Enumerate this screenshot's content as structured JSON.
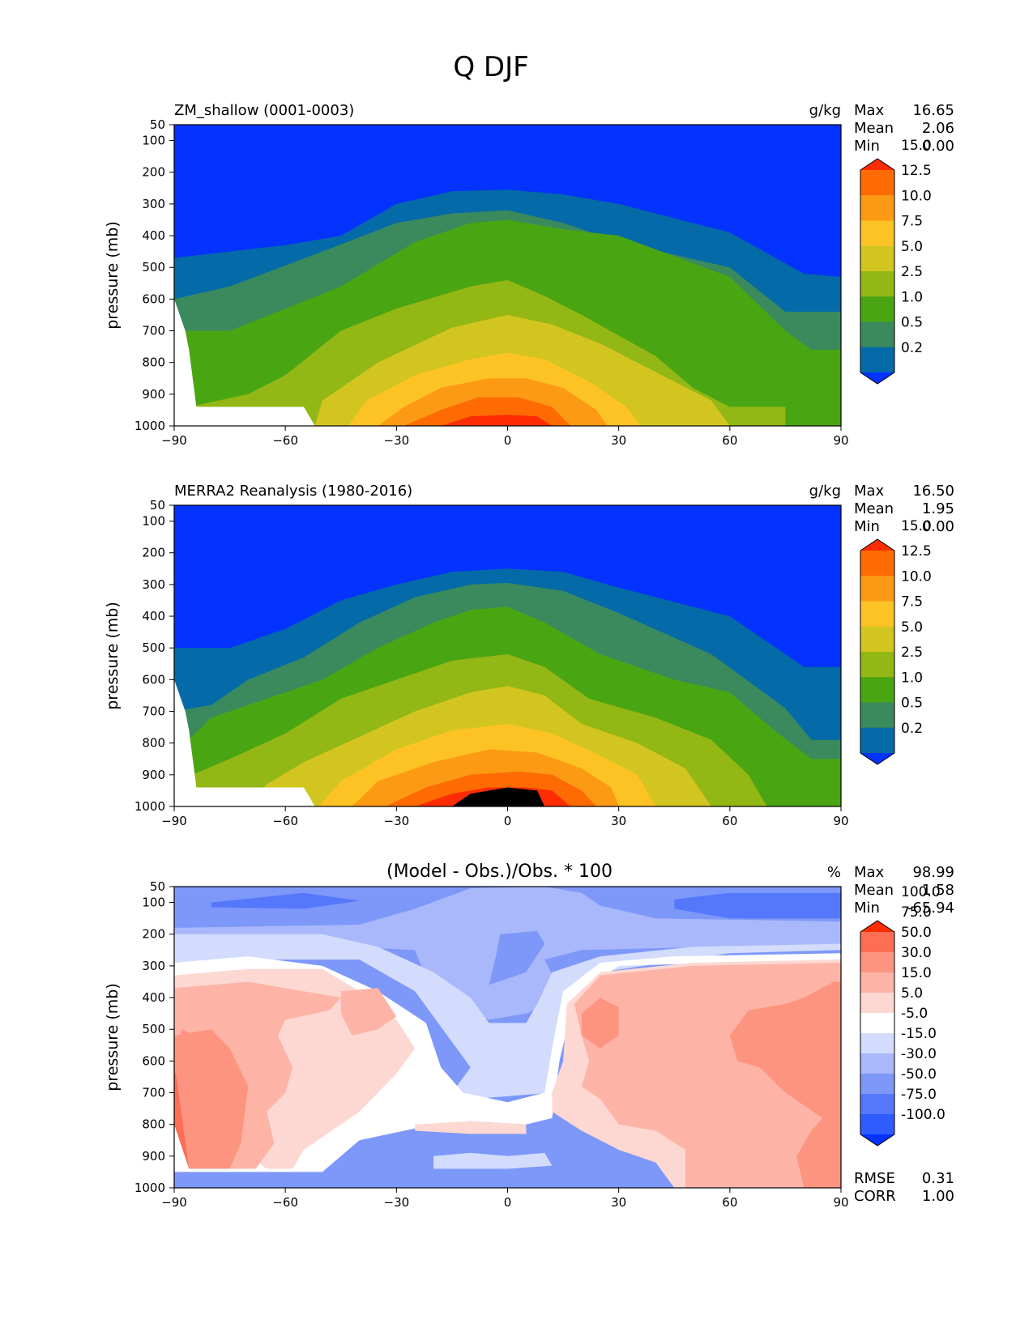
{
  "chart_data": {
    "title": "Q DJF",
    "type": "heatmap",
    "x_ticks": [
      -90,
      -60,
      -30,
      0,
      30,
      60,
      90
    ],
    "y_ticks": [
      50,
      100,
      200,
      300,
      400,
      500,
      600,
      700,
      800,
      900,
      1000
    ],
    "ylabel": "pressure (mb)",
    "xlim": [
      -90,
      90
    ],
    "ylim": [
      1000,
      50
    ],
    "panels": [
      {
        "name": "model",
        "left_title": "ZM_shallow (0001-0003)",
        "center_title": "",
        "units": "g/kg",
        "stats": [
          {
            "label": "Max",
            "value": "16.65"
          },
          {
            "label": "Mean",
            "value": "2.06"
          },
          {
            "label": "Min",
            "value": "0.00"
          }
        ],
        "colorbar": {
          "colors": [
            "#0432ff",
            "#046aa8",
            "#3a8a5e",
            "#4aa512",
            "#93b714",
            "#d3c520",
            "#fdc325",
            "#fd9a14",
            "#fd6b02",
            "#fd2c03"
          ],
          "labels": [
            "0.2",
            "0.5",
            "1.0",
            "2.5",
            "5.0",
            "7.5",
            "10.0",
            "12.5",
            "15.0"
          ]
        },
        "contours": [
          {
            "level": 0,
            "points": [
              [
                -90,
                470
              ],
              [
                -60,
                430
              ],
              [
                -45,
                400
              ],
              [
                -30,
                300
              ],
              [
                -15,
                260
              ],
              [
                0,
                255
              ],
              [
                15,
                270
              ],
              [
                30,
                300
              ],
              [
                60,
                390
              ],
              [
                80,
                520
              ],
              [
                90,
                530
              ]
            ]
          },
          {
            "level": 1,
            "points": [
              [
                -90,
                600
              ],
              [
                -75,
                560
              ],
              [
                -50,
                450
              ],
              [
                -30,
                360
              ],
              [
                -15,
                330
              ],
              [
                0,
                320
              ],
              [
                15,
                360
              ],
              [
                30,
                420
              ],
              [
                60,
                500
              ],
              [
                75,
                640
              ],
              [
                90,
                640
              ]
            ]
          },
          {
            "level": 2,
            "points": [
              [
                -90,
                700
              ],
              [
                -75,
                700
              ],
              [
                -60,
                630
              ],
              [
                -45,
                560
              ],
              [
                -25,
                420
              ],
              [
                -10,
                360
              ],
              [
                0,
                350
              ],
              [
                15,
                380
              ],
              [
                30,
                400
              ],
              [
                60,
                530
              ],
              [
                75,
                700
              ],
              [
                82,
                760
              ],
              [
                90,
                760
              ]
            ]
          },
          {
            "level": 3,
            "points": [
              [
                -86,
                940
              ],
              [
                -70,
                900
              ],
              [
                -60,
                840
              ],
              [
                -45,
                700
              ],
              [
                -30,
                630
              ],
              [
                -10,
                560
              ],
              [
                0,
                540
              ],
              [
                10,
                590
              ],
              [
                20,
                650
              ],
              [
                40,
                780
              ],
              [
                50,
                880
              ],
              [
                60,
                940
              ],
              [
                70,
                940
              ],
              [
                75,
                940
              ]
            ]
          },
          {
            "level": 4,
            "points": [
              [
                -52,
                1000
              ],
              [
                -50,
                920
              ],
              [
                -35,
                800
              ],
              [
                -15,
                690
              ],
              [
                0,
                650
              ],
              [
                12,
                680
              ],
              [
                25,
                740
              ],
              [
                35,
                800
              ],
              [
                45,
                860
              ],
              [
                55,
                920
              ],
              [
                60,
                1000
              ]
            ]
          },
          {
            "level": 5,
            "points": [
              [
                -43,
                1000
              ],
              [
                -38,
                920
              ],
              [
                -25,
                840
              ],
              [
                -10,
                790
              ],
              [
                0,
                770
              ],
              [
                10,
                790
              ],
              [
                22,
                860
              ],
              [
                32,
                940
              ],
              [
                36,
                1000
              ]
            ]
          },
          {
            "level": 6,
            "points": [
              [
                -35,
                1000
              ],
              [
                -28,
                940
              ],
              [
                -18,
                880
              ],
              [
                -5,
                850
              ],
              [
                5,
                850
              ],
              [
                15,
                880
              ],
              [
                24,
                950
              ],
              [
                27,
                1000
              ]
            ]
          },
          {
            "level": 7,
            "points": [
              [
                -28,
                1000
              ],
              [
                -18,
                950
              ],
              [
                -8,
                910
              ],
              [
                3,
                910
              ],
              [
                12,
                940
              ],
              [
                17,
                1000
              ]
            ]
          },
          {
            "level": 8,
            "points": [
              [
                -18,
                1000
              ],
              [
                -10,
                970
              ],
              [
                0,
                965
              ],
              [
                8,
                970
              ],
              [
                12,
                1000
              ]
            ]
          }
        ]
      },
      {
        "name": "obs",
        "left_title": "MERRA2 Reanalysis (1980-2016)",
        "center_title": "",
        "units": "g/kg",
        "stats": [
          {
            "label": "Max",
            "value": "16.50"
          },
          {
            "label": "Mean",
            "value": "1.95"
          },
          {
            "label": "Min",
            "value": "0.00"
          }
        ],
        "colorbar": {
          "colors": [
            "#0432ff",
            "#046aa8",
            "#3a8a5e",
            "#4aa512",
            "#93b714",
            "#d3c520",
            "#fdc325",
            "#fd9a14",
            "#fd6b02",
            "#fd2c03"
          ],
          "labels": [
            "0.2",
            "0.5",
            "1.0",
            "2.5",
            "5.0",
            "7.5",
            "10.0",
            "12.5",
            "15.0"
          ]
        },
        "contours": [
          {
            "level": 0,
            "points": [
              [
                -90,
                500
              ],
              [
                -75,
                500
              ],
              [
                -60,
                440
              ],
              [
                -45,
                350
              ],
              [
                -30,
                300
              ],
              [
                -15,
                260
              ],
              [
                0,
                250
              ],
              [
                15,
                260
              ],
              [
                30,
                310
              ],
              [
                60,
                400
              ],
              [
                80,
                560
              ],
              [
                90,
                560
              ]
            ]
          },
          {
            "level": 1,
            "points": [
              [
                -90,
                700
              ],
              [
                -80,
                680
              ],
              [
                -70,
                600
              ],
              [
                -55,
                530
              ],
              [
                -40,
                420
              ],
              [
                -25,
                340
              ],
              [
                -10,
                300
              ],
              [
                0,
                295
              ],
              [
                15,
                320
              ],
              [
                30,
                390
              ],
              [
                55,
                520
              ],
              [
                75,
                690
              ],
              [
                82,
                790
              ],
              [
                90,
                790
              ]
            ]
          },
          {
            "level": 2,
            "points": [
              [
                -87,
                800
              ],
              [
                -80,
                720
              ],
              [
                -65,
                660
              ],
              [
                -50,
                600
              ],
              [
                -35,
                500
              ],
              [
                -20,
                420
              ],
              [
                -10,
                380
              ],
              [
                0,
                370
              ],
              [
                10,
                420
              ],
              [
                25,
                520
              ],
              [
                45,
                600
              ],
              [
                60,
                640
              ],
              [
                72,
                760
              ],
              [
                82,
                850
              ],
              [
                90,
                850
              ]
            ]
          },
          {
            "level": 3,
            "points": [
              [
                -85,
                1000
              ],
              [
                -85,
                900
              ],
              [
                -75,
                850
              ],
              [
                -60,
                770
              ],
              [
                -45,
                660
              ],
              [
                -30,
                600
              ],
              [
                -15,
                540
              ],
              [
                0,
                520
              ],
              [
                10,
                560
              ],
              [
                22,
                660
              ],
              [
                40,
                720
              ],
              [
                55,
                790
              ],
              [
                65,
                900
              ],
              [
                70,
                1000
              ]
            ]
          },
          {
            "level": 4,
            "points": [
              [
                -70,
                1000
              ],
              [
                -65,
                930
              ],
              [
                -55,
                860
              ],
              [
                -40,
                780
              ],
              [
                -25,
                700
              ],
              [
                -10,
                640
              ],
              [
                0,
                620
              ],
              [
                10,
                650
              ],
              [
                20,
                740
              ],
              [
                35,
                800
              ],
              [
                48,
                880
              ],
              [
                55,
                1000
              ]
            ]
          },
          {
            "level": 5,
            "points": [
              [
                -51,
                1000
              ],
              [
                -45,
                920
              ],
              [
                -30,
                820
              ],
              [
                -15,
                760
              ],
              [
                0,
                740
              ],
              [
                12,
                770
              ],
              [
                25,
                840
              ],
              [
                35,
                900
              ],
              [
                40,
                1000
              ]
            ]
          },
          {
            "level": 6,
            "points": [
              [
                -42,
                1000
              ],
              [
                -35,
                920
              ],
              [
                -20,
                860
              ],
              [
                -5,
                820
              ],
              [
                8,
                830
              ],
              [
                20,
                880
              ],
              [
                28,
                940
              ],
              [
                30,
                1000
              ]
            ]
          },
          {
            "level": 7,
            "points": [
              [
                -33,
                1000
              ],
              [
                -22,
                940
              ],
              [
                -10,
                900
              ],
              [
                3,
                890
              ],
              [
                12,
                900
              ],
              [
                20,
                950
              ],
              [
                24,
                1000
              ]
            ]
          },
          {
            "level": 8,
            "points": [
              [
                -25,
                1000
              ],
              [
                -15,
                960
              ],
              [
                -5,
                940
              ],
              [
                5,
                940
              ],
              [
                12,
                950
              ],
              [
                17,
                1000
              ]
            ]
          },
          {
            "level": 9,
            "points": [
              [
                -15,
                1000
              ],
              [
                -10,
                960
              ],
              [
                0,
                940
              ],
              [
                8,
                950
              ],
              [
                10,
                1000
              ]
            ]
          }
        ]
      },
      {
        "name": "diff",
        "left_title": "",
        "center_title": "(Model - Obs.)/Obs. * 100",
        "units": "%",
        "stats": [
          {
            "label": "Max",
            "value": "98.99"
          },
          {
            "label": "Mean",
            "value": "1.58"
          },
          {
            "label": "Min",
            "value": "-65.94"
          }
        ],
        "bottom_stats": [
          {
            "label": "RMSE",
            "value": "0.31"
          },
          {
            "label": "CORR",
            "value": "1.00"
          }
        ],
        "colorbar": {
          "colors": [
            "#0432ff",
            "#2e5cff",
            "#5477fb",
            "#7d98f9",
            "#a8b8fa",
            "#d3dcfc",
            "#ffffff",
            "#fdd8d2",
            "#fdb4a7",
            "#fd9480",
            "#fd6e55",
            "#fd2c03"
          ],
          "labels": [
            "-100.0",
            "-75.0",
            "-50.0",
            "-30.0",
            "-15.0",
            "-5.0",
            "5.0",
            "15.0",
            "30.0",
            "50.0",
            "75.0",
            "100.0"
          ]
        },
        "background": "#7d98f9"
      }
    ]
  }
}
